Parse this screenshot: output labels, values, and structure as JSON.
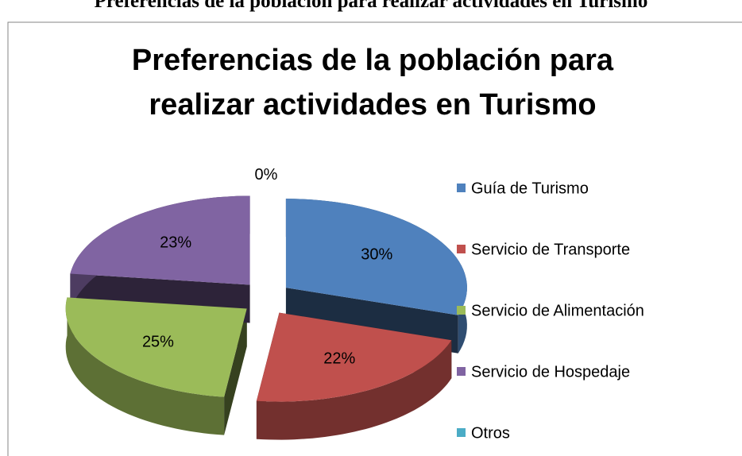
{
  "caption": "Preferencias de la población para realizar actividades en Turismo",
  "chart_data": {
    "type": "pie",
    "title": "Preferencias de la población para realizar actividades en Turismo",
    "categories": [
      "Guía de Turismo",
      "Servicio de Transporte",
      "Servicio de Alimentación",
      "Servicio de Hospedaje",
      "Otros"
    ],
    "values": [
      30,
      22,
      25,
      23,
      0
    ],
    "value_labels": [
      "30%",
      "22%",
      "25%",
      "23%",
      "0%"
    ],
    "colors": [
      "#4f81bd",
      "#c0504d",
      "#9bbb59",
      "#8064a2",
      "#4bacc6"
    ],
    "legend": "right"
  }
}
